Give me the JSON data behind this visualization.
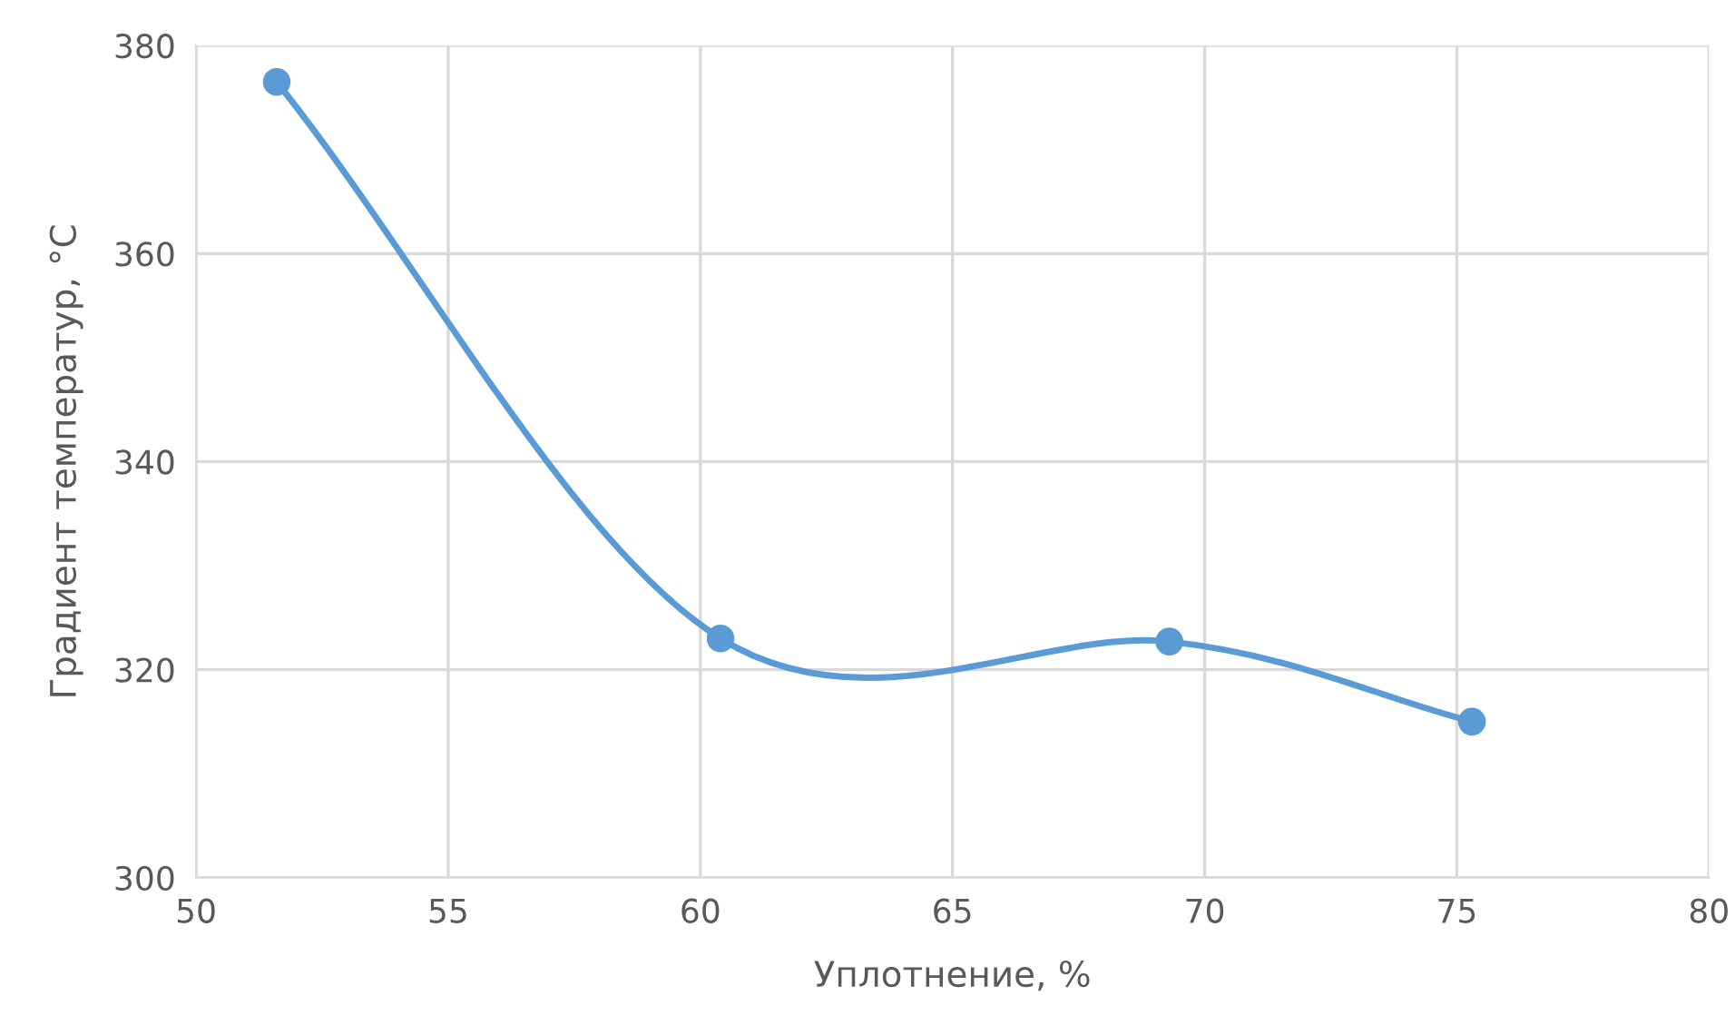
{
  "chart_data": {
    "type": "line",
    "xlabel": "Уплотнение, %",
    "ylabel": "Градиент температур, °C",
    "x": [
      51.6,
      60.4,
      69.3,
      75.3
    ],
    "series": [
      {
        "color": "#5b9bd5",
        "values": [
          376.5,
          323.0,
          322.7,
          315.0
        ]
      }
    ],
    "xlim": [
      50,
      80
    ],
    "xticks": [
      50,
      55,
      60,
      65,
      70,
      75,
      80
    ],
    "ylim": [
      300,
      380
    ],
    "yticks": [
      300,
      320,
      340,
      360,
      380
    ],
    "grid": true,
    "marker": "circle",
    "line_style": "solid"
  }
}
